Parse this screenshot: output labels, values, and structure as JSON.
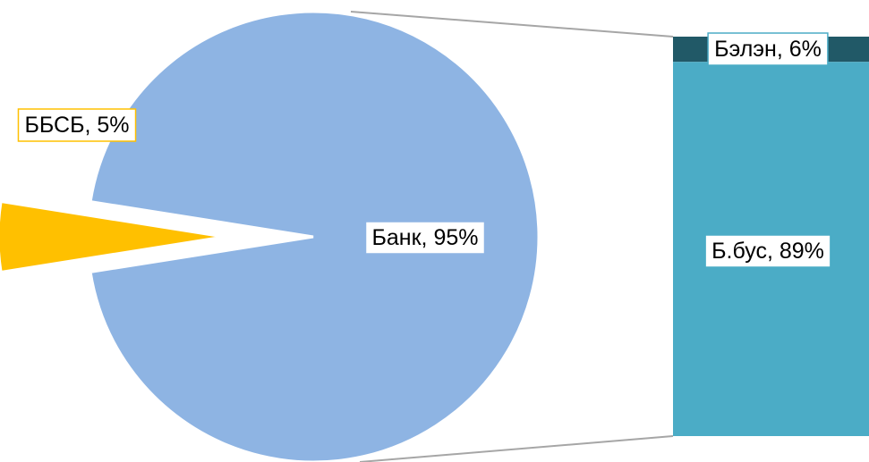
{
  "colors": {
    "bank": "#8EB4E3",
    "bbsb": "#FFC000",
    "bus": "#4BACC6",
    "belen": "#215967",
    "connector": "#A6A6A6",
    "label_bg": "#FFFFFF"
  },
  "chart_data": {
    "type": "bar-of-pie",
    "pie": {
      "slices": [
        {
          "name": "Банк",
          "value": 95,
          "label": "Банк, 95%",
          "color": "#8EB4E3",
          "exploded": false
        },
        {
          "name": "ББСБ",
          "value": 5,
          "label": "ББСБ, 5%",
          "color": "#FFC000",
          "exploded": true
        }
      ]
    },
    "bar": {
      "segments": [
        {
          "name": "Бэлэн",
          "value": 6,
          "label": "Бэлэн, 6%",
          "color": "#215967"
        },
        {
          "name": "Б.бус",
          "value": 89,
          "label": "Б.бус, 89%",
          "color": "#4BACC6"
        }
      ]
    },
    "legend": "none",
    "grid": false
  }
}
